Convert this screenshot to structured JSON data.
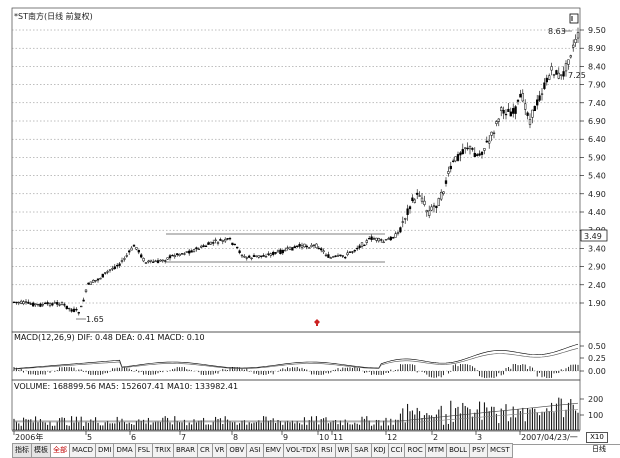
{
  "chart": {
    "title": "*ST南方(日线 前复权)",
    "price_axis_labels": [
      "9.50",
      "8.90",
      "8.40",
      "7.90",
      "7.40",
      "6.90",
      "6.40",
      "5.90",
      "5.40",
      "4.90",
      "4.40",
      "3.90",
      "3.40",
      "2.90",
      "2.40",
      "1.90"
    ],
    "current_price_badge": "3.49",
    "max_label": "8.63",
    "min_label": "1.65",
    "side_label": "7.25",
    "date_labels": [
      "2006年",
      "5",
      "6",
      "7",
      "8",
      "9",
      "10",
      "11",
      "12",
      "2",
      "3",
      "2007/04/23/一"
    ],
    "macd_header": "MACD(12,26,9)  DIF: 0.48  DEA: 0.41  MACD: 0.10",
    "macd_axis_labels": [
      "0.50",
      "0.25",
      "0.00"
    ],
    "volume_header": "VOLUME: 168899.56  MA5: 152607.41  MA10: 133982.41",
    "volume_axis_labels": [
      "200",
      "100"
    ],
    "volume_unit": "X10",
    "period_box": "日线"
  },
  "tabs": [
    {
      "label": "指标",
      "mode": true
    },
    {
      "label": "模板",
      "mode": true
    },
    {
      "label": "全部",
      "active": true
    },
    {
      "label": "MACD"
    },
    {
      "label": "DMI"
    },
    {
      "label": "DMA"
    },
    {
      "label": "FSL"
    },
    {
      "label": "TRIX"
    },
    {
      "label": "BRAR"
    },
    {
      "label": "CR"
    },
    {
      "label": "VR"
    },
    {
      "label": "OBV"
    },
    {
      "label": "ASI"
    },
    {
      "label": "EMV"
    },
    {
      "label": "VOL-TDX"
    },
    {
      "label": "RSI"
    },
    {
      "label": "WR"
    },
    {
      "label": "SAR"
    },
    {
      "label": "KDJ"
    },
    {
      "label": "CCI"
    },
    {
      "label": "ROC"
    },
    {
      "label": "MTM"
    },
    {
      "label": "BOLL"
    },
    {
      "label": "PSY"
    },
    {
      "label": "MCST"
    }
  ],
  "colors": {
    "candle": "#000000",
    "grid": "#7f7f7f",
    "highlight": "#cc2222"
  }
}
